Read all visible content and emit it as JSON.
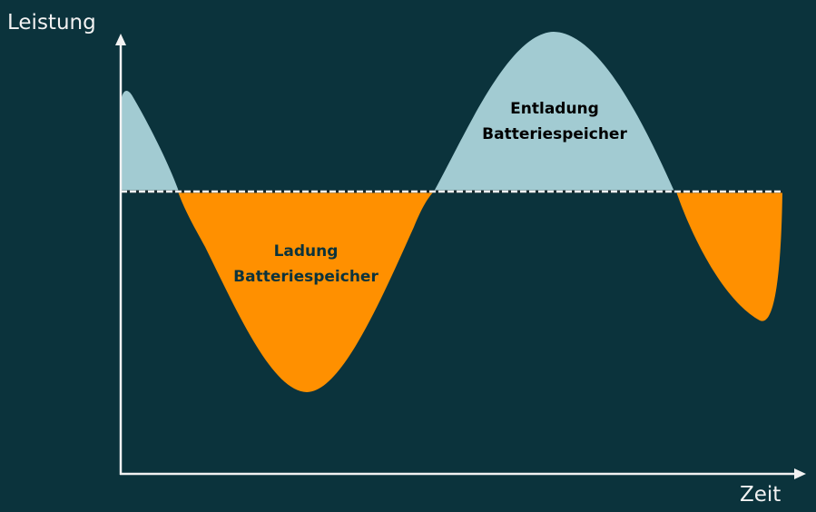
{
  "axes": {
    "y_label": "Leistung",
    "x_label": "Zeit"
  },
  "areas": {
    "charging": {
      "line1": "Ladung",
      "line2": "Batteriespeicher",
      "text_color": "#0b333c"
    },
    "discharging": {
      "line1": "Entladung",
      "line2": "Batteriespeicher",
      "text_color": "#000000"
    }
  },
  "colors": {
    "background": "#0b333c",
    "charging": "#ff9000",
    "discharging": "#a2cbd2",
    "axis": "#f2f2f2"
  }
}
